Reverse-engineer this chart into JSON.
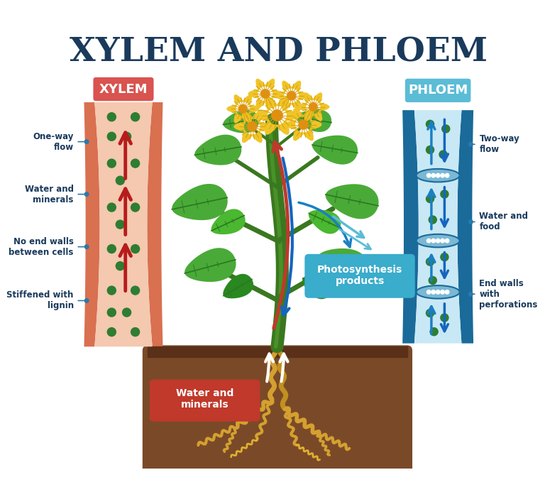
{
  "title": "XYLEM AND PHLOEM",
  "title_color": "#1a3a5c",
  "title_fontsize": 34,
  "bg_color": "#ffffff",
  "xylem_label": "XYLEM",
  "xylem_label_bg": "#d9534f",
  "xylem_label_color": "#ffffff",
  "xylem_tube_bg": "#f5c8b0",
  "xylem_tube_border": "#d97050",
  "xylem_dot_color": "#2e7d32",
  "xylem_arrow_color": "#b71c1c",
  "phloem_label": "PHLOEM",
  "phloem_label_bg": "#5bbcd6",
  "phloem_label_color": "#ffffff",
  "phloem_tube_bg": "#c8e8f5",
  "phloem_tube_border": "#1a6a9a",
  "phloem_plate_bg": "#7ab8d4",
  "phloem_dot_color": "#2e7d32",
  "phloem_arrow_up_color": "#1a7fc4",
  "phloem_arrow_down_color": "#1565C0",
  "annotation_color": "#1a3a5c",
  "photosynthesis_label": "Photosynthesis\nproducts",
  "photosynthesis_bg": "#3aaccc",
  "water_minerals_label": "Water and\nminerals",
  "water_minerals_bg": "#c0392b",
  "soil_color": "#7a4a28",
  "soil_dark": "#5a3018",
  "root_color": "#d4a030",
  "stem_color": "#3a7820",
  "leaf_color": "#4aaa38",
  "leaf_dark": "#2a8820",
  "flower_petal": "#f0c428",
  "flower_center": "#e09010"
}
